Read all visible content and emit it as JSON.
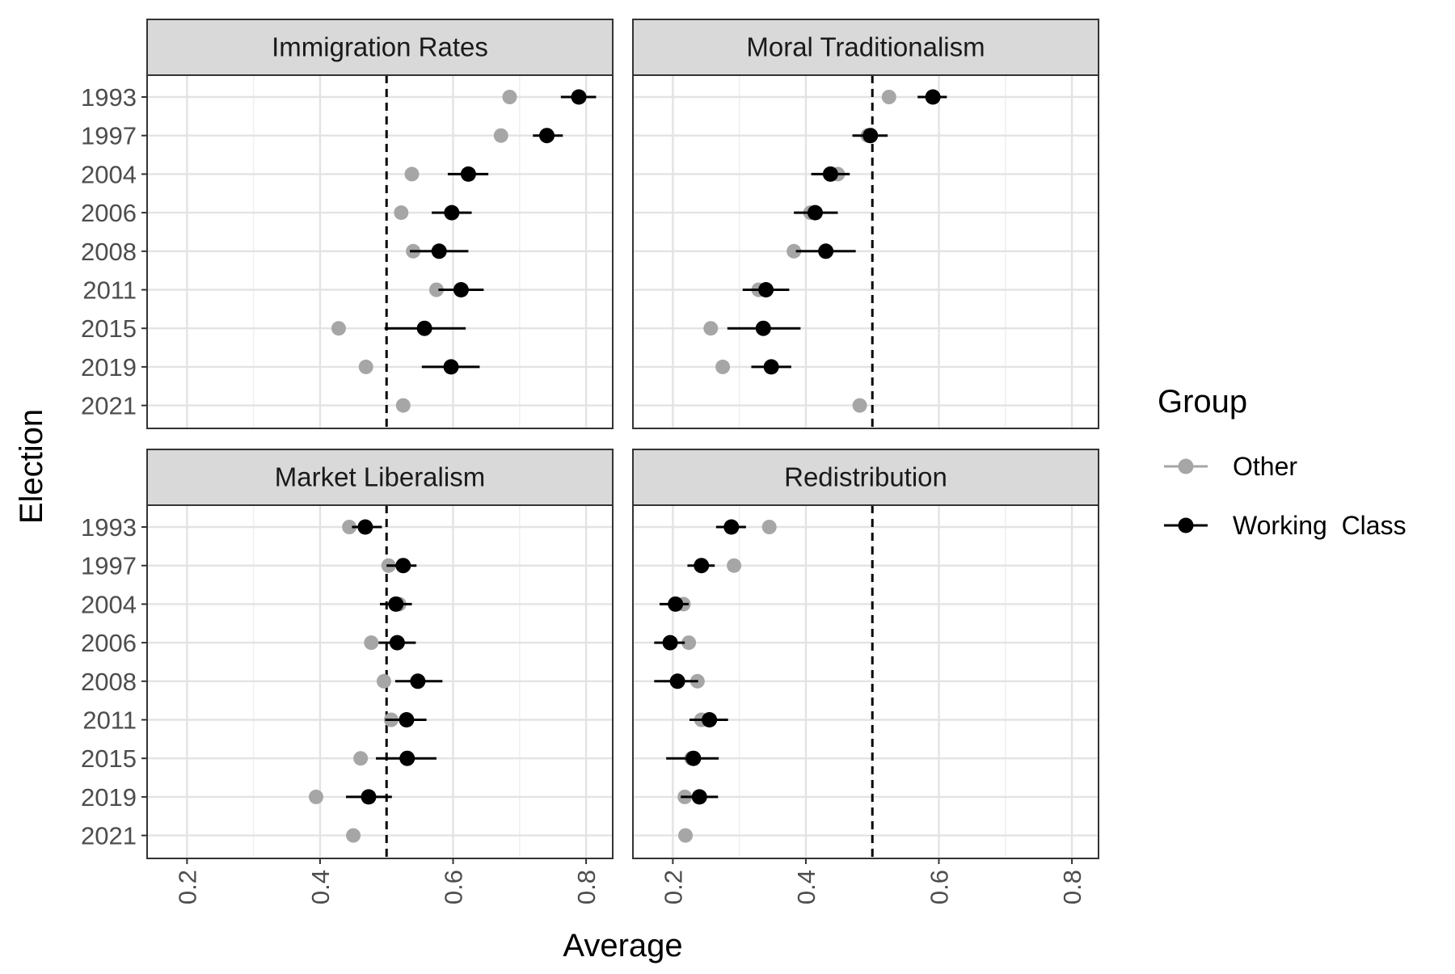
{
  "chart_data": {
    "type": "scatter",
    "subtype": "faceted dot plot with error bars",
    "xlabel": "Average",
    "ylabel": "Election",
    "xlim": [
      0.14,
      0.84
    ],
    "xticks": [
      "0.2",
      "0.4",
      "0.6",
      "0.8"
    ],
    "xtick_values": [
      0.2,
      0.4,
      0.6,
      0.8
    ],
    "categories": [
      "1993",
      "1997",
      "2004",
      "2006",
      "2008",
      "2011",
      "2015",
      "2019",
      "2021"
    ],
    "reference_line": 0.5,
    "grid": true,
    "legend": {
      "title": "Group",
      "position": "right",
      "entries": [
        "Other",
        "Working  Class"
      ]
    },
    "colors": {
      "Other": "#a6a6a6",
      "Working Class": "#000000"
    },
    "panels": [
      {
        "title": "Immigration Rates",
        "series": [
          {
            "key": "Other",
            "values": [
              0.685,
              0.672,
              0.538,
              0.522,
              0.54,
              0.575,
              0.428,
              0.469,
              0.525
            ]
          },
          {
            "key": "Working Class",
            "values": [
              0.789,
              0.741,
              0.623,
              0.598,
              0.579,
              0.612,
              0.557,
              0.597,
              null
            ],
            "lower": [
              0.762,
              0.72,
              0.592,
              0.568,
              0.535,
              0.578,
              0.497,
              0.553,
              null
            ],
            "upper": [
              0.815,
              0.765,
              0.653,
              0.628,
              0.623,
              0.646,
              0.619,
              0.64,
              null
            ]
          }
        ]
      },
      {
        "title": "Moral Traditionalism",
        "series": [
          {
            "key": "Other",
            "values": [
              0.525,
              0.493,
              0.448,
              0.407,
              0.382,
              0.329,
              0.257,
              0.275,
              0.481
            ]
          },
          {
            "key": "Working Class",
            "values": [
              0.591,
              0.497,
              0.437,
              0.414,
              0.43,
              0.34,
              0.336,
              0.348,
              null
            ],
            "lower": [
              0.568,
              0.47,
              0.408,
              0.382,
              0.385,
              0.305,
              0.282,
              0.318,
              null
            ],
            "upper": [
              0.612,
              0.523,
              0.466,
              0.448,
              0.475,
              0.375,
              0.392,
              0.378,
              null
            ]
          }
        ]
      },
      {
        "title": "Market Liberalism",
        "series": [
          {
            "key": "Other",
            "values": [
              0.444,
              0.503,
              0.519,
              0.477,
              0.496,
              0.507,
              0.461,
              0.394,
              0.45
            ]
          },
          {
            "key": "Working Class",
            "values": [
              0.468,
              0.525,
              0.514,
              0.516,
              0.547,
              0.53,
              0.531,
              0.473,
              null
            ],
            "lower": [
              0.448,
              0.5,
              0.49,
              0.488,
              0.513,
              0.498,
              0.484,
              0.439,
              null
            ],
            "upper": [
              0.493,
              0.545,
              0.538,
              0.544,
              0.584,
              0.56,
              0.575,
              0.508,
              null
            ]
          }
        ]
      },
      {
        "title": "Redistribution",
        "series": [
          {
            "key": "Other",
            "values": [
              0.345,
              0.292,
              0.216,
              0.224,
              0.237,
              0.243,
              0.228,
              0.218,
              0.219
            ]
          },
          {
            "key": "Working Class",
            "values": [
              0.288,
              0.243,
              0.204,
              0.196,
              0.207,
              0.255,
              0.231,
              0.24,
              null
            ],
            "lower": [
              0.265,
              0.222,
              0.18,
              0.172,
              0.172,
              0.225,
              0.19,
              0.212,
              null
            ],
            "upper": [
              0.31,
              0.263,
              0.224,
              0.218,
              0.238,
              0.283,
              0.269,
              0.268,
              null
            ]
          }
        ]
      }
    ]
  }
}
